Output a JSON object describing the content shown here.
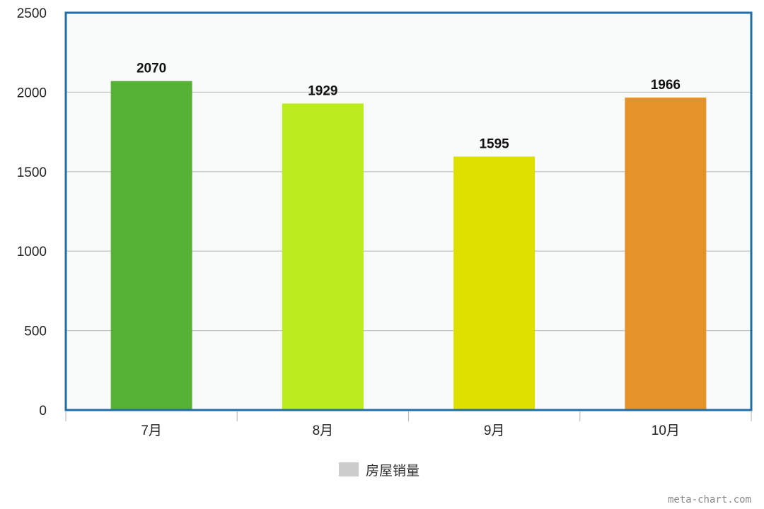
{
  "chart_data": {
    "type": "bar",
    "categories": [
      "7月",
      "8月",
      "9月",
      "10月"
    ],
    "series": [
      {
        "name": "房屋销量",
        "values": [
          2070,
          1929,
          1595,
          1966
        ],
        "colors": [
          "#55b234",
          "#bbed1e",
          "#dfdf00",
          "#e5922b"
        ]
      }
    ],
    "yticks": [
      0,
      500,
      1000,
      1500,
      2000,
      2500
    ],
    "ylim": [
      0,
      2500
    ],
    "grid": true,
    "legend_position": "bottom",
    "legend_color": "#cccccc",
    "frame_color": "#1f6ea8",
    "plot_background": "#f8fbf9"
  },
  "watermark": "meta-chart.com"
}
